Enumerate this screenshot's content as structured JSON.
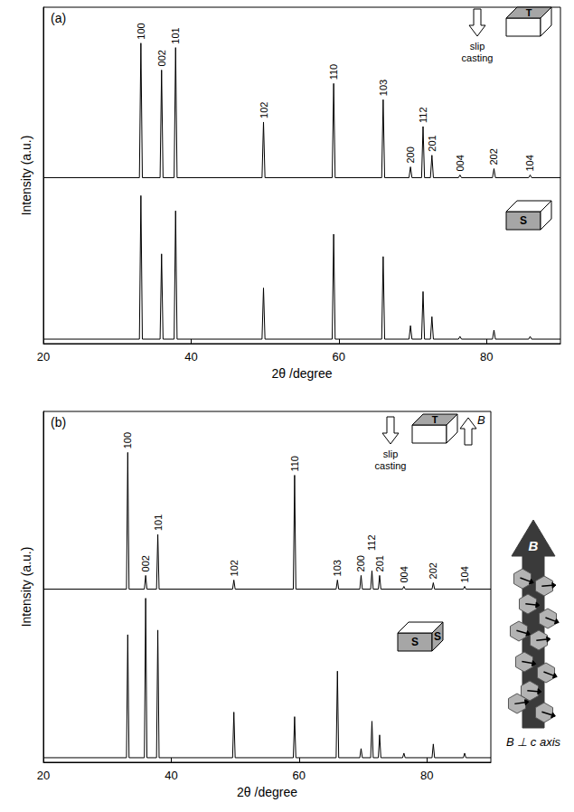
{
  "chart_data": [
    {
      "type": "line",
      "title": "(a)",
      "x_label": "2θ /degree",
      "y_label": "Intensity (a.u.)",
      "x": [
        20,
        33.0,
        33.2,
        33.4,
        35.8,
        36.0,
        36.2,
        37.7,
        37.9,
        38.1,
        49.6,
        49.8,
        50.0,
        59.1,
        59.3,
        59.5,
        65.8,
        66.0,
        66.2,
        69.5,
        69.7,
        69.9,
        71.2,
        71.4,
        71.6,
        72.4,
        72.6,
        72.8,
        76.2,
        76.4,
        76.6,
        80.8,
        81.0,
        81.2,
        85.7,
        85.9,
        86.1,
        90
      ],
      "series": [
        {
          "name": "T",
          "color": "#000000",
          "face_labels": [
            "T"
          ],
          "values": [
            185,
            185,
            335,
            185,
            185,
            305,
            185,
            185,
            330,
            185,
            185,
            247,
            185,
            185,
            290,
            185,
            185,
            272,
            185,
            185,
            197,
            185,
            185,
            242,
            185,
            185,
            210,
            185,
            185,
            188,
            185,
            185,
            195,
            185,
            185,
            188,
            185,
            185
          ]
        },
        {
          "name": "S",
          "color": "#000000",
          "face_labels": [
            "S"
          ],
          "values": [
            5,
            5,
            165,
            5,
            5,
            100,
            5,
            5,
            148,
            5,
            5,
            62,
            5,
            5,
            122,
            5,
            5,
            97,
            5,
            5,
            20,
            5,
            5,
            58,
            5,
            5,
            30,
            5,
            5,
            8,
            5,
            5,
            15,
            5,
            5,
            8,
            5,
            5
          ]
        }
      ],
      "xlim": [
        20,
        90
      ],
      "xticks": [
        20,
        40,
        60,
        80
      ],
      "ylim": [
        0,
        375
      ],
      "tick_labels": "x",
      "grid": false,
      "process": "slip casting",
      "peak_labels": [
        {
          "label": "100",
          "x": 33.2
        },
        {
          "label": "002",
          "x": 36.0
        },
        {
          "label": "101",
          "x": 37.9
        },
        {
          "label": "102",
          "x": 49.8
        },
        {
          "label": "110",
          "x": 59.3
        },
        {
          "label": "103",
          "x": 66.0
        },
        {
          "label": "200",
          "x": 69.7
        },
        {
          "label": "112",
          "x": 71.4
        },
        {
          "label": "201",
          "x": 72.6
        },
        {
          "label": "004",
          "x": 76.4
        },
        {
          "label": "202",
          "x": 81.0
        },
        {
          "label": "104",
          "x": 85.9
        }
      ]
    },
    {
      "type": "line",
      "title": "(b)",
      "x_label": "2θ /degree",
      "y_label": "Intensity (a.u.)",
      "x": [
        20,
        33.0,
        33.2,
        33.4,
        35.8,
        36.0,
        36.2,
        37.7,
        37.9,
        38.1,
        49.6,
        49.8,
        50.0,
        59.1,
        59.3,
        59.5,
        65.8,
        66.0,
        66.2,
        69.5,
        69.7,
        69.9,
        71.2,
        71.4,
        71.6,
        72.4,
        72.6,
        72.8,
        76.2,
        76.4,
        76.6,
        80.8,
        81.0,
        81.2,
        85.7,
        85.9,
        86.1,
        90
      ],
      "series": [
        {
          "name": "T",
          "color": "#000000",
          "face_labels": [
            "T"
          ],
          "values": [
            190,
            190,
            340,
            190,
            190,
            205,
            190,
            190,
            250,
            190,
            190,
            200,
            190,
            190,
            315,
            190,
            190,
            200,
            190,
            190,
            205,
            190,
            190,
            210,
            190,
            190,
            205,
            190,
            190,
            193,
            190,
            190,
            197,
            190,
            190,
            193,
            190,
            190
          ]
        },
        {
          "name": "S",
          "color": "#000000",
          "face_labels": [
            "S",
            "S"
          ],
          "values": [
            5,
            5,
            140,
            5,
            5,
            180,
            5,
            5,
            145,
            5,
            5,
            55,
            5,
            5,
            50,
            5,
            5,
            100,
            5,
            5,
            15,
            5,
            5,
            45,
            5,
            5,
            30,
            5,
            5,
            10,
            5,
            5,
            20,
            5,
            5,
            10,
            5,
            5
          ]
        }
      ],
      "xlim": [
        20,
        90
      ],
      "xticks": [
        20,
        40,
        60,
        80
      ],
      "ylim": [
        0,
        385
      ],
      "tick_labels": "x",
      "grid": false,
      "process": "slip casting",
      "field": "B",
      "caption": "B ⊥ c axis",
      "peak_labels": [
        {
          "label": "100",
          "x": 33.2
        },
        {
          "label": "002",
          "x": 36.0
        },
        {
          "label": "101",
          "x": 37.9
        },
        {
          "label": "102",
          "x": 49.8
        },
        {
          "label": "110",
          "x": 59.3
        },
        {
          "label": "103",
          "x": 66.0
        },
        {
          "label": "200",
          "x": 69.7
        },
        {
          "label": "112",
          "x": 71.4
        },
        {
          "label": "201",
          "x": 72.6
        },
        {
          "label": "004",
          "x": 76.4
        },
        {
          "label": "202",
          "x": 81.0
        },
        {
          "label": "104",
          "x": 85.9
        }
      ]
    }
  ]
}
